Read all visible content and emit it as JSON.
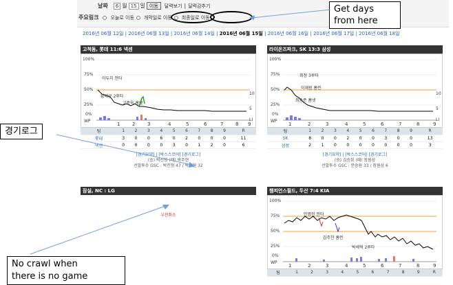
{
  "controls": {
    "date_label": "날짜",
    "month_value": "6",
    "month_unit": "월",
    "day_value": "15",
    "day_unit": "일",
    "go_button": "이동",
    "calendar_view": "달력보기",
    "calendar_close": "달력감추기",
    "mainlink_label": "주요링크",
    "opt_today": "오늘로 이동",
    "opt_first": "개막일로 이동",
    "opt_last": "최종일로 이동"
  },
  "dates": {
    "d1": "2016년 06월 12일",
    "d2": "2016년 06월 13일",
    "d3": "2016년 06월 14일",
    "d4": "2016년 06월 15일",
    "d5": "2016년 06월 16일",
    "d6": "2016년 06월 17일",
    "d7": "2016년 06월 18일",
    "sep": "|"
  },
  "games": [
    {
      "title": "고척돔, 롯데 11:6 넥센",
      "annotations": [
        "황재균 2루타",
        "아두치 안타",
        "고종욱 홈넷"
      ],
      "innings_header": [
        "팀",
        "1",
        "2",
        "3",
        "4",
        "5",
        "6",
        "7",
        "8",
        "9",
        "R"
      ],
      "rows": [
        {
          "team": "롯데",
          "scores": [
            "3",
            "0",
            "0",
            "6",
            "0",
            "2",
            "0",
            "0",
            "0",
            "11"
          ]
        },
        {
          "team": "넥센",
          "scores": [
            "0",
            "0",
            "0",
            "0",
            "3",
            "0",
            "1",
            "2",
            "0",
            "6"
          ]
        }
      ],
      "links": "[경기요약] | [박스스코어] [경기로그]",
      "pitchers": "(승) 박진형 (패) 박주현",
      "starters": "선발투수 GSC : 박진형 47 / 박주현 32"
    },
    {
      "title": "라이온즈파크, SK 13:3 삼성",
      "annotations": [
        "최정 3루타",
        "이재원 홈런",
        "최승준 홈넷"
      ],
      "innings_header": [
        "팀",
        "1",
        "2",
        "3",
        "4",
        "5",
        "6",
        "7",
        "8",
        "9",
        "R"
      ],
      "rows": [
        {
          "team": "SK",
          "scores": [
            "8",
            "0",
            "0",
            "2",
            "0",
            "0",
            "3",
            "0",
            "0",
            "13"
          ]
        },
        {
          "team": "삼성",
          "scores": [
            "2",
            "1",
            "0",
            "0",
            "0",
            "0",
            "0",
            "0",
            "0",
            "3"
          ]
        }
      ],
      "links": "[경기요약] | [박스스코어] [경기로그]",
      "pitchers": "(승) 김승회 (패) 장원삼",
      "starters": "선발투수 GSC : 문승원 33 / 장원삼 6"
    },
    {
      "title": "잠실, NC : LG",
      "cancel": "우천취소"
    },
    {
      "title": "챔피언스필드, 두산 7:4 KIA",
      "annotations": [
        "민병헌 안타",
        "김주찬 홈런",
        "박세혁 2루타"
      ],
      "innings_header": [
        "팀",
        "1",
        "2",
        "3",
        "4",
        "5",
        "6",
        "7",
        "8",
        "9",
        "R"
      ]
    }
  ],
  "axis": {
    "y_ticks": [
      "100%",
      "75%",
      "50%",
      "25%",
      "0%",
      "WP"
    ],
    "x_ticks": [
      "1",
      "2",
      "3",
      "4",
      "5",
      "6",
      "7",
      "8",
      "9"
    ],
    "right_ticks": [
      "10",
      "5",
      "LI"
    ]
  },
  "notes": {
    "get_days": "Get days\nfrom here",
    "game_log": "경기로그",
    "no_crawl": "No crawl when\nthere is no game"
  }
}
